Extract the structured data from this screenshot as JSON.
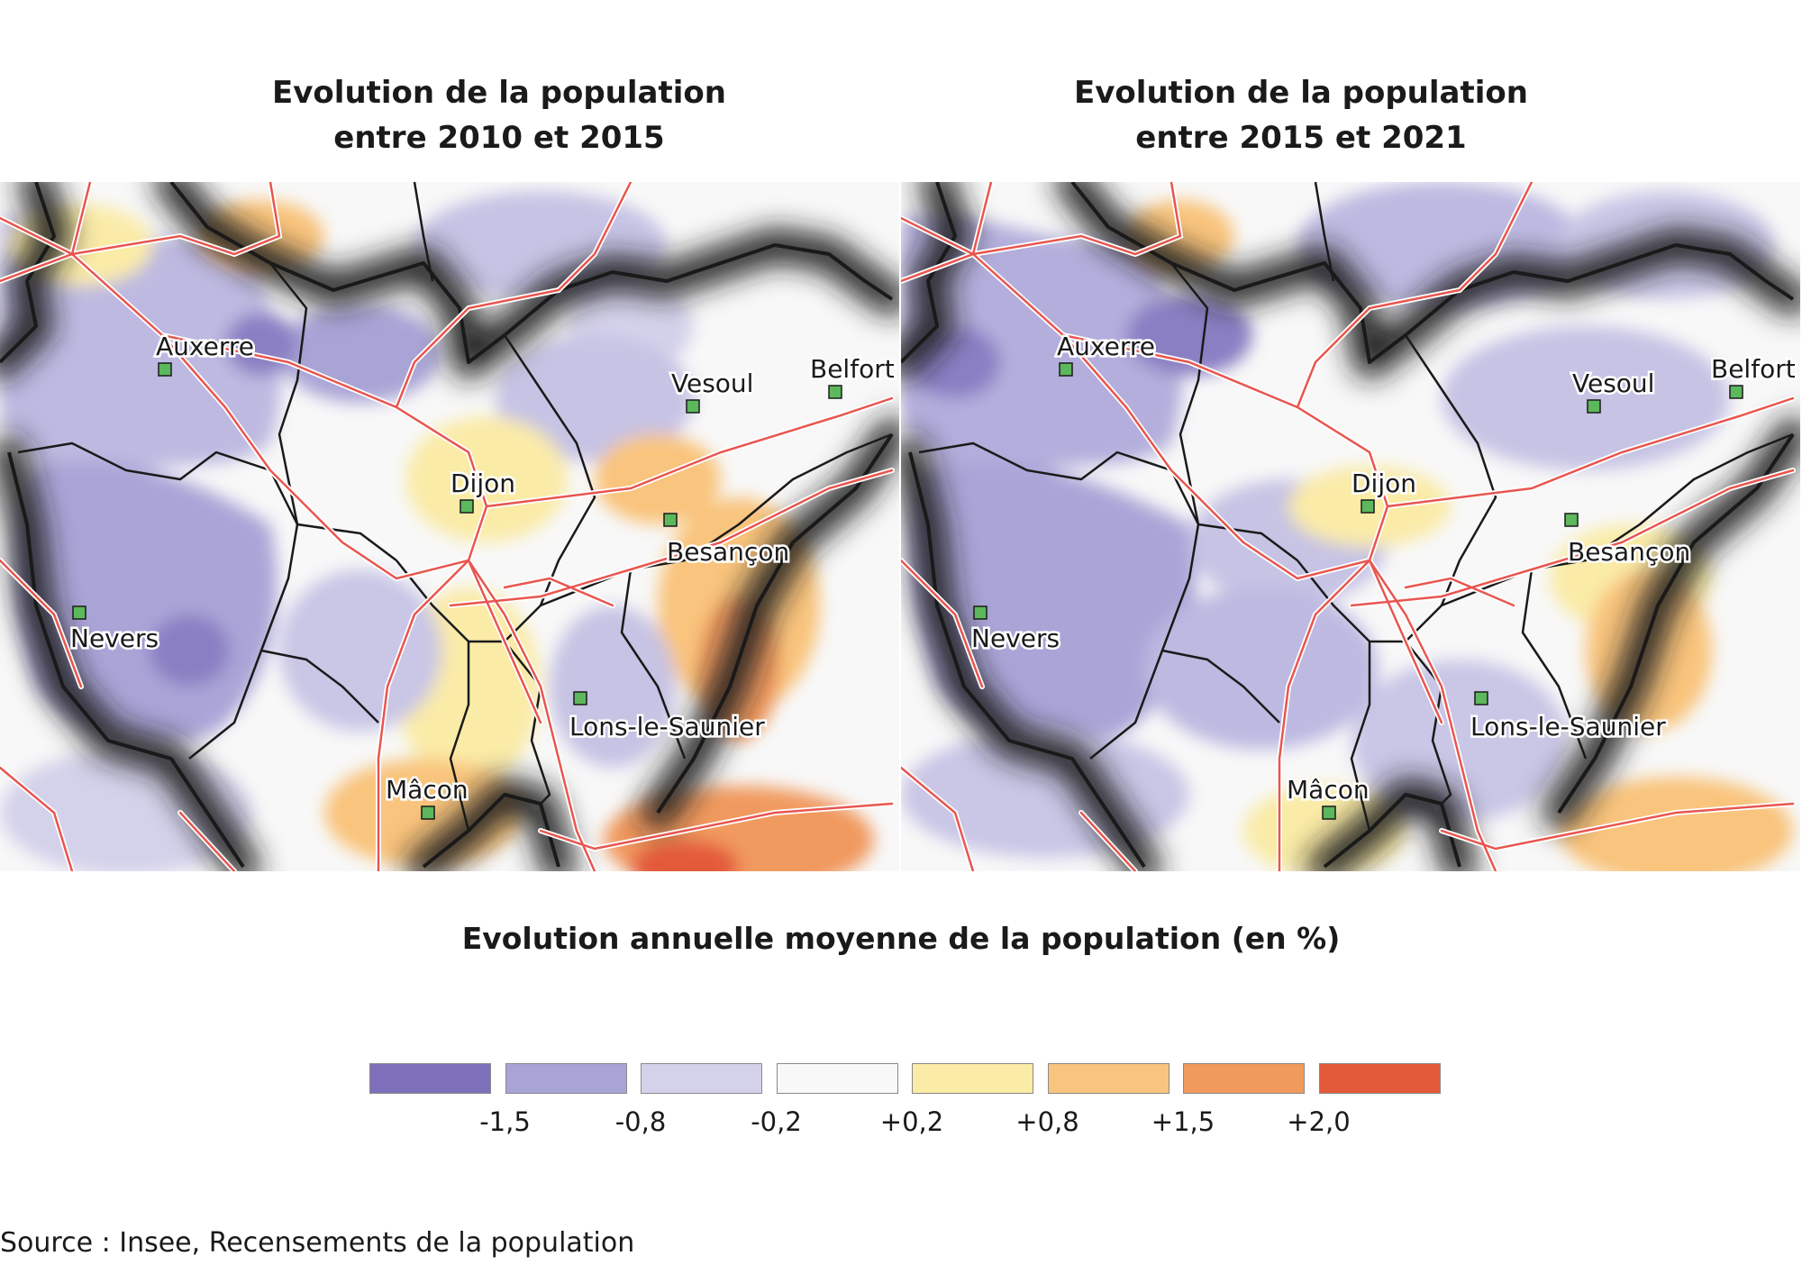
{
  "maps": [
    {
      "title_line1": "Evolution de la population",
      "title_line2": "entre 2010 et 2015"
    },
    {
      "title_line1": "Evolution de la population",
      "title_line2": "entre 2015 et 2021"
    }
  ],
  "cities": [
    "Auxerre",
    "Vesoul",
    "Belfort",
    "Dijon",
    "Besançon",
    "Nevers",
    "Lons-le-Saunier",
    "Mâcon"
  ],
  "legend": {
    "title": "Evolution annuelle moyenne de la population (en %)",
    "classes": [
      {
        "color": "#7e70bb"
      },
      {
        "color": "#a9a4d6"
      },
      {
        "color": "#d4d2ea"
      },
      {
        "color": "#f8f8f8"
      },
      {
        "color": "#faeba7"
      },
      {
        "color": "#f9c47d"
      },
      {
        "color": "#f19a5e"
      },
      {
        "color": "#e35a3a"
      }
    ],
    "breaks": [
      "-1,5",
      "-0,8",
      "-0,2",
      "+0,2",
      "+0,8",
      "+1,5",
      "+2,0"
    ]
  },
  "source": "Source : Insee, Recensements de la population",
  "colors": {
    "city_marker": "#5cb85c",
    "roads": "#e8564f",
    "boundaries": "#1a1a1a"
  }
}
